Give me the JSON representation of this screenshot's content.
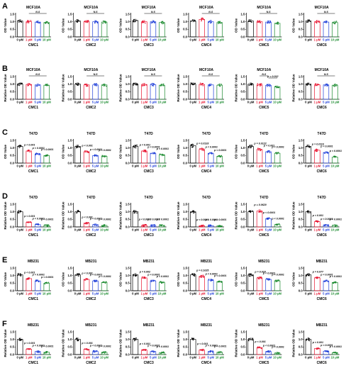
{
  "rows": [
    {
      "label": "A",
      "cell": "MCF10A",
      "ylabel": "OD Value",
      "ylim": [
        0,
        1.5
      ],
      "yticks": [
        "0.0",
        "0.5",
        "1.0",
        "1.5"
      ]
    },
    {
      "label": "B",
      "cell": "MCF10A",
      "ylabel": "Relative OD Value",
      "ylim": [
        0,
        1.5
      ],
      "yticks": [
        "0.0",
        "0.5",
        "1.0",
        "1.5"
      ]
    },
    {
      "label": "C",
      "cell": "T47D",
      "ylabel": "OD Value",
      "ylim": [
        0,
        1.5
      ],
      "yticks": [
        "0.0",
        "0.5",
        "1.0",
        "1.5"
      ]
    },
    {
      "label": "D",
      "cell": "T47D",
      "ylabel": "Relative OD Value",
      "ylim": [
        0,
        1.5
      ],
      "yticks": [
        "0.0",
        "0.5",
        "1.0",
        "1.5"
      ]
    },
    {
      "label": "E",
      "cell": "MB231",
      "ylabel": "OD Value",
      "ylim": [
        0,
        1.5
      ],
      "yticks": [
        "0.0",
        "0.5",
        "1.0",
        "1.5"
      ]
    },
    {
      "label": "F",
      "cell": "MB231",
      "ylabel": "Relative OD Value",
      "ylim": [
        0,
        1.5
      ],
      "yticks": [
        "0.0",
        "0.5",
        "1.0",
        "1.5"
      ]
    }
  ],
  "compounds": [
    "CMC1",
    "CMC2",
    "CMC3",
    "CMC4",
    "CMC5",
    "CMC6"
  ],
  "doses": [
    "0 μM",
    "1 μM",
    "5 μM",
    "10 μM"
  ],
  "series_colors": [
    "#000000",
    "#e8112d",
    "#1f3fd9",
    "#1a8a2e"
  ],
  "chart_data": {
    "type": "bar",
    "categories": [
      "0 μM",
      "1 μM",
      "5 μM",
      "10 μM"
    ],
    "panels": [
      {
        "row": "A",
        "compound": "CMC1",
        "values": [
          1.05,
          1.0,
          0.98,
          0.95
        ],
        "annotations": [
          {
            "from": 1,
            "to": 3,
            "text": "N.S"
          }
        ]
      },
      {
        "row": "A",
        "compound": "CMC2",
        "values": [
          1.05,
          1.0,
          1.0,
          0.98
        ],
        "annotations": [
          {
            "from": 1,
            "to": 3,
            "text": "N.S"
          }
        ]
      },
      {
        "row": "A",
        "compound": "CMC3",
        "values": [
          1.08,
          1.0,
          1.0,
          0.95
        ],
        "annotations": [
          {
            "from": 1,
            "to": 3,
            "text": "N.S"
          }
        ]
      },
      {
        "row": "A",
        "compound": "CMC4",
        "values": [
          1.05,
          1.15,
          1.0,
          0.95
        ],
        "annotations": [
          {
            "from": 1,
            "to": 3,
            "text": "N.S"
          }
        ]
      },
      {
        "row": "A",
        "compound": "CMC5",
        "values": [
          1.05,
          1.0,
          0.98,
          0.9
        ],
        "annotations": [
          {
            "from": 1,
            "to": 3,
            "text": "N.S"
          }
        ]
      },
      {
        "row": "A",
        "compound": "CMC6",
        "values": [
          1.05,
          1.0,
          0.98,
          0.95
        ],
        "annotations": [
          {
            "from": 1,
            "to": 3,
            "text": "N.S"
          }
        ]
      },
      {
        "row": "B",
        "compound": "CMC1",
        "values": [
          1.0,
          0.98,
          0.95,
          0.93
        ],
        "annotations": [
          {
            "from": 1,
            "to": 3,
            "text": "N.S"
          }
        ]
      },
      {
        "row": "B",
        "compound": "CMC2",
        "values": [
          1.0,
          0.95,
          0.95,
          0.95
        ],
        "annotations": [
          {
            "from": 1,
            "to": 3,
            "text": "N.S"
          }
        ]
      },
      {
        "row": "B",
        "compound": "CMC3",
        "values": [
          1.0,
          0.98,
          0.97,
          0.93
        ],
        "annotations": [
          {
            "from": 1,
            "to": 3,
            "text": "N.S"
          }
        ]
      },
      {
        "row": "B",
        "compound": "CMC4",
        "values": [
          1.0,
          0.98,
          0.95,
          0.93
        ],
        "annotations": [
          {
            "from": 1,
            "to": 3,
            "text": "N.S"
          }
        ]
      },
      {
        "row": "B",
        "compound": "CMC5",
        "values": [
          1.0,
          0.95,
          0.92,
          0.82
        ],
        "annotations": [
          {
            "from": 1,
            "to": 2,
            "text": "N.S"
          },
          {
            "from": 2,
            "to": 3,
            "text": "p = 0.012"
          }
        ]
      },
      {
        "row": "B",
        "compound": "CMC6",
        "values": [
          1.0,
          0.95,
          0.95,
          0.93
        ],
        "annotations": [
          {
            "from": 1,
            "to": 3,
            "text": "N.S"
          }
        ]
      },
      {
        "row": "C",
        "compound": "CMC1",
        "values": [
          1.1,
          0.8,
          0.6,
          0.5
        ],
        "annotations": [
          {
            "from": 1,
            "to": 1,
            "text": "p < 0.001"
          },
          {
            "from": 2,
            "to": 2,
            "text": "p < 0.0001"
          },
          {
            "from": 3,
            "to": 3,
            "text": "p < 0.0001"
          }
        ]
      },
      {
        "row": "C",
        "compound": "CMC2",
        "values": [
          1.1,
          0.75,
          0.5,
          0.45
        ],
        "annotations": [
          {
            "from": 1,
            "to": 1,
            "text": "p < 0.001"
          },
          {
            "from": 2,
            "to": 2,
            "text": "p < 0.0001"
          },
          {
            "from": 3,
            "to": 3,
            "text": "p < 0.0001"
          }
        ]
      },
      {
        "row": "C",
        "compound": "CMC3",
        "values": [
          1.1,
          0.8,
          0.65,
          0.55
        ],
        "annotations": [
          {
            "from": 1,
            "to": 1,
            "text": "p < 0.001"
          },
          {
            "from": 2,
            "to": 2,
            "text": "p < 0.0001"
          },
          {
            "from": 3,
            "to": 3,
            "text": "p < 0.0001"
          }
        ]
      },
      {
        "row": "C",
        "compound": "CMC4",
        "values": [
          1.15,
          0.9,
          0.65,
          0.45
        ],
        "annotations": [
          {
            "from": 1,
            "to": 1,
            "text": "p = 0.0133"
          },
          {
            "from": 2,
            "to": 2,
            "text": "p < 0.0001"
          },
          {
            "from": 3,
            "to": 3,
            "text": "p < 0.0001"
          }
        ]
      },
      {
        "row": "C",
        "compound": "CMC5",
        "values": [
          1.1,
          0.9,
          0.75,
          0.65
        ],
        "annotations": [
          {
            "from": 1,
            "to": 1,
            "text": "p = 0.0122"
          },
          {
            "from": 2,
            "to": 2,
            "text": "p < 0.001"
          },
          {
            "from": 3,
            "to": 3,
            "text": "p < 0.0001"
          }
        ]
      },
      {
        "row": "C",
        "compound": "CMC6",
        "values": [
          1.1,
          0.85,
          0.7,
          0.4
        ],
        "annotations": [
          {
            "from": 1,
            "to": 1,
            "text": "p = 0.0113"
          },
          {
            "from": 2,
            "to": 2,
            "text": "p < 0.0001"
          },
          {
            "from": 3,
            "to": 3,
            "text": "p < 0.0001"
          }
        ]
      },
      {
        "row": "D",
        "compound": "CMC1",
        "values": [
          1.0,
          0.3,
          0.15,
          0.1
        ],
        "annotations": [
          {
            "from": 1,
            "to": 1,
            "text": "p < 0.001"
          },
          {
            "from": 2,
            "to": 2,
            "text": "p < 0.0001"
          },
          {
            "from": 3,
            "to": 3,
            "text": "p < 0.0001"
          }
        ]
      },
      {
        "row": "D",
        "compound": "CMC2",
        "values": [
          1.0,
          0.25,
          0.15,
          0.1
        ],
        "annotations": [
          {
            "from": 1,
            "to": 1,
            "text": "p < 0.001"
          },
          {
            "from": 2,
            "to": 2,
            "text": "p < 0.0001"
          },
          {
            "from": 3,
            "to": 3,
            "text": "p < 0.0001"
          }
        ]
      },
      {
        "row": "D",
        "compound": "CMC3",
        "values": [
          1.0,
          0.1,
          0.1,
          0.1
        ],
        "annotations": [
          {
            "from": 1,
            "to": 1,
            "text": "p < 0.0001"
          },
          {
            "from": 2,
            "to": 2,
            "text": "p < 0.0001"
          },
          {
            "from": 3,
            "to": 3,
            "text": "p < 0.0001"
          }
        ]
      },
      {
        "row": "D",
        "compound": "CMC4",
        "values": [
          1.0,
          0.08,
          0.08,
          0.07
        ],
        "annotations": [
          {
            "from": 1,
            "to": 1,
            "text": "p < 0.0001"
          },
          {
            "from": 2,
            "to": 2,
            "text": "p < 0.0001"
          },
          {
            "from": 3,
            "to": 3,
            "text": "p < 0.0001"
          }
        ]
      },
      {
        "row": "D",
        "compound": "CMC5",
        "values": [
          1.0,
          1.05,
          0.55,
          0.15
        ],
        "annotations": [
          {
            "from": 1,
            "to": 1,
            "text": "p = 0.0620"
          },
          {
            "from": 2,
            "to": 2,
            "text": "p < 0.0001"
          },
          {
            "from": 3,
            "to": 3,
            "text": "p < 0.0001"
          }
        ]
      },
      {
        "row": "D",
        "compound": "CMC6",
        "values": [
          1.0,
          0.35,
          0.12,
          0.1
        ],
        "annotations": [
          {
            "from": 1,
            "to": 1,
            "text": "p < 0.001"
          },
          {
            "from": 2,
            "to": 2,
            "text": "p < 0.0001"
          },
          {
            "from": 3,
            "to": 3,
            "text": "p < 0.0001"
          }
        ]
      },
      {
        "row": "E",
        "compound": "CMC1",
        "values": [
          1.05,
          0.8,
          0.65,
          0.5
        ],
        "annotations": [
          {
            "from": 1,
            "to": 1,
            "text": "p < 0.001"
          },
          {
            "from": 2,
            "to": 2,
            "text": "p < 0.0001"
          },
          {
            "from": 3,
            "to": 3,
            "text": "p < 0.0001"
          }
        ]
      },
      {
        "row": "E",
        "compound": "CMC2",
        "values": [
          1.05,
          0.75,
          0.65,
          0.55
        ],
        "annotations": [
          {
            "from": 1,
            "to": 1,
            "text": "p < 0.001"
          },
          {
            "from": 2,
            "to": 2,
            "text": "p < 0.0001"
          },
          {
            "from": 3,
            "to": 3,
            "text": "p < 0.0001"
          }
        ]
      },
      {
        "row": "E",
        "compound": "CMC3",
        "values": [
          1.05,
          0.85,
          0.65,
          0.55
        ],
        "annotations": [
          {
            "from": 1,
            "to": 1,
            "text": "p = 0.002"
          },
          {
            "from": 2,
            "to": 2,
            "text": "p < 0.0001"
          },
          {
            "from": 3,
            "to": 3,
            "text": "p < 0.0001"
          }
        ]
      },
      {
        "row": "E",
        "compound": "CMC4",
        "values": [
          1.05,
          0.95,
          0.7,
          0.6
        ],
        "annotations": [
          {
            "from": 1,
            "to": 1,
            "text": "p = 0.1025"
          },
          {
            "from": 2,
            "to": 2,
            "text": "p < 0.0001"
          },
          {
            "from": 3,
            "to": 3,
            "text": "p < 0.0001"
          }
        ]
      },
      {
        "row": "E",
        "compound": "CMC5",
        "values": [
          1.05,
          0.85,
          0.75,
          0.65
        ],
        "annotations": [
          {
            "from": 1,
            "to": 1,
            "text": "p = 0.018"
          },
          {
            "from": 2,
            "to": 2,
            "text": "p < 0.0001"
          },
          {
            "from": 3,
            "to": 3,
            "text": "p < 0.0001"
          }
        ]
      },
      {
        "row": "E",
        "compound": "CMC6",
        "values": [
          1.05,
          0.85,
          0.65,
          0.55
        ],
        "annotations": [
          {
            "from": 1,
            "to": 1,
            "text": "p = 0.077"
          },
          {
            "from": 2,
            "to": 2,
            "text": "p < 0.0001"
          },
          {
            "from": 3,
            "to": 3,
            "text": "p < 0.0001"
          }
        ]
      },
      {
        "row": "F",
        "compound": "CMC1",
        "values": [
          1.0,
          0.35,
          0.2,
          0.15
        ],
        "annotations": [
          {
            "from": 1,
            "to": 1,
            "text": "p < 0.001"
          },
          {
            "from": 2,
            "to": 2,
            "text": "p < 0.0001"
          },
          {
            "from": 3,
            "to": 3,
            "text": "p < 0.0001"
          }
        ]
      },
      {
        "row": "F",
        "compound": "CMC2",
        "values": [
          1.0,
          0.35,
          0.2,
          0.15
        ],
        "annotations": [
          {
            "from": 1,
            "to": 1,
            "text": "p < 0.001"
          },
          {
            "from": 2,
            "to": 2,
            "text": "p < 0.0001"
          },
          {
            "from": 3,
            "to": 3,
            "text": "p < 0.0001"
          }
        ]
      },
      {
        "row": "F",
        "compound": "CMC3",
        "values": [
          1.0,
          0.3,
          0.2,
          0.12
        ],
        "annotations": [
          {
            "from": 1,
            "to": 1,
            "text": "p < 0.001"
          },
          {
            "from": 2,
            "to": 2,
            "text": "p < 0.0001"
          },
          {
            "from": 3,
            "to": 3,
            "text": "p < 0.0001"
          }
        ]
      },
      {
        "row": "F",
        "compound": "CMC4",
        "values": [
          1.0,
          0.3,
          0.2,
          0.15
        ],
        "annotations": [
          {
            "from": 1,
            "to": 1,
            "text": "p < 0.001"
          },
          {
            "from": 2,
            "to": 2,
            "text": "p < 0.0001"
          },
          {
            "from": 3,
            "to": 3,
            "text": "p < 0.0001"
          }
        ]
      },
      {
        "row": "F",
        "compound": "CMC5",
        "values": [
          1.0,
          0.45,
          0.2,
          0.1
        ],
        "annotations": [
          {
            "from": 1,
            "to": 1,
            "text": "p < 0.001"
          },
          {
            "from": 2,
            "to": 2,
            "text": "p < 0.0001"
          },
          {
            "from": 3,
            "to": 3,
            "text": "p < 0.0001"
          }
        ]
      },
      {
        "row": "F",
        "compound": "CMC6",
        "values": [
          1.0,
          0.4,
          0.22,
          0.12
        ],
        "annotations": [
          {
            "from": 1,
            "to": 1,
            "text": "p < 0.001"
          },
          {
            "from": 2,
            "to": 2,
            "text": "p < 0.0001"
          },
          {
            "from": 3,
            "to": 3,
            "text": "p < 0.0001"
          }
        ]
      }
    ]
  }
}
